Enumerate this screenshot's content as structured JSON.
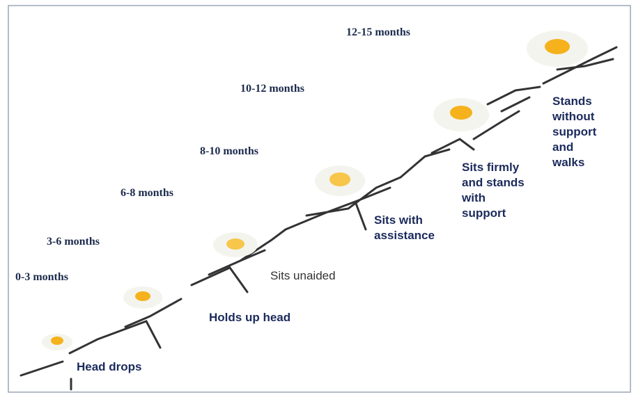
{
  "stages": [
    {
      "age": "0-3 months",
      "milestone": "Head drops"
    },
    {
      "age": "3-6 months",
      "milestone": "Holds up head"
    },
    {
      "age": "6-8 months",
      "milestone": "Sits unaided"
    },
    {
      "age": "8-10 months",
      "milestone": "Sits with assistance"
    },
    {
      "age": "10-12 months",
      "milestone": "Sits firmly and stands with support"
    },
    {
      "age": "12-15 months",
      "milestone": "Stands without support and walks"
    }
  ]
}
